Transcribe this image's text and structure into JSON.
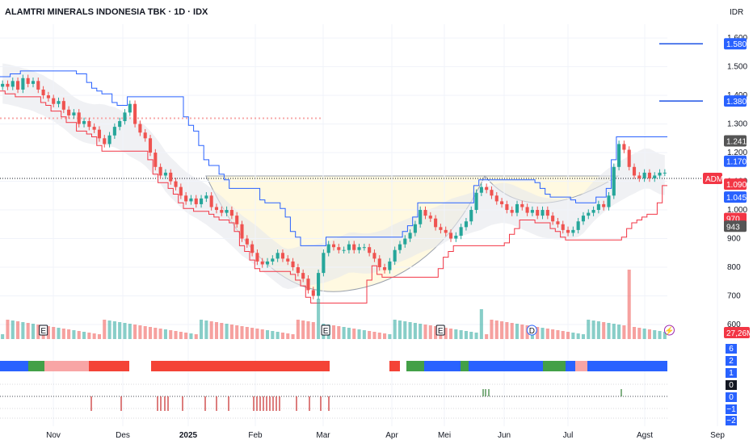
{
  "header": {
    "title": "ALAMTRI MINERALS INDONESIA TBK · 1D · IDX",
    "currency": "IDR"
  },
  "colors": {
    "up": "#26a69a",
    "down": "#ef5350",
    "upper_band": "#2962ff",
    "lower_band": "#f23645",
    "bar_blue": "#2962ff",
    "bar_green": "#43a047",
    "bar_red": "#f44336",
    "bar_pink": "#f8a5a5",
    "tag_dark": "#555555",
    "tag_blue": "#2962ff",
    "tag_red": "#f23645"
  },
  "chart_data": {
    "type": "candlestick",
    "symbol": "ADMR",
    "x_labels": [
      "Nov",
      "Des",
      "2025",
      "Feb",
      "Mar",
      "Apr",
      "Mei",
      "Jun",
      "Jul",
      "Agst",
      "Sep"
    ],
    "y_ticks": [
      600,
      700,
      800,
      900,
      1000,
      1100,
      1200,
      1300,
      1400,
      1500,
      1600
    ],
    "ylim": [
      600,
      1620
    ],
    "price_tags": [
      {
        "value": 1580,
        "label": "1.580",
        "style": "blue"
      },
      {
        "value": 1380,
        "label": "1.380",
        "style": "blue"
      },
      {
        "value": 1241,
        "label": "1.241",
        "style": "dark"
      },
      {
        "value": 1170,
        "label": "1.170",
        "style": "blue"
      },
      {
        "value": 1110,
        "label": "ADMR",
        "style": "red"
      },
      {
        "value": 1090,
        "label": "1.090",
        "style": "red"
      },
      {
        "value": 1045,
        "label": "1.045",
        "style": "blue"
      },
      {
        "value": 970,
        "label": "970",
        "style": "red"
      },
      {
        "value": 943,
        "label": "943",
        "style": "dark"
      }
    ],
    "horizontal_levels": [
      1580,
      1380
    ],
    "dotted_levels": [
      {
        "value": 1110,
        "label": "ADMR"
      }
    ],
    "volume_label": "27,26M",
    "event_markers": [
      {
        "label": "E",
        "x_fraction": 0.065
      },
      {
        "label": "E",
        "x_fraction": 0.488
      },
      {
        "label": "E",
        "x_fraction": 0.66
      },
      {
        "label": "D",
        "x_fraction": 0.797
      },
      {
        "label": "⚡",
        "x_fraction": 1.003
      }
    ],
    "oscillator_ticks": [
      "6",
      "2",
      "1",
      "0",
      "0",
      "−1",
      "−2"
    ],
    "close_series": [
      1440,
      1430,
      1450,
      1420,
      1460,
      1440,
      1450,
      1420,
      1400,
      1390,
      1370,
      1380,
      1350,
      1330,
      1340,
      1300,
      1310,
      1290,
      1280,
      1250,
      1230,
      1260,
      1290,
      1310,
      1340,
      1370,
      1300,
      1270,
      1250,
      1200,
      1150,
      1120,
      1130,
      1100,
      1080,
      1050,
      1030,
      1040,
      1020,
      1040,
      1050,
      1010,
      1000,
      990,
      1000,
      980,
      950,
      900,
      880,
      850,
      820,
      810,
      820,
      830,
      850,
      830,
      820,
      800,
      780,
      760,
      720,
      700,
      780,
      850,
      880,
      870,
      860,
      860,
      880,
      860,
      870,
      870,
      850,
      830,
      800,
      790,
      820,
      860,
      880,
      900,
      920,
      950,
      1000,
      980,
      970,
      940,
      930,
      920,
      900,
      910,
      940,
      960,
      1000,
      1060,
      1080,
      1070,
      1050,
      1030,
      1020,
      1000,
      990,
      1020,
      1010,
      990,
      1000,
      980,
      1000,
      980,
      960,
      950,
      930,
      920,
      930,
      960,
      980,
      990,
      1000,
      1020,
      1010,
      1050,
      1150,
      1230,
      1210,
      1150,
      1120,
      1110,
      1130,
      1110,
      1120,
      1130,
      1130
    ]
  }
}
